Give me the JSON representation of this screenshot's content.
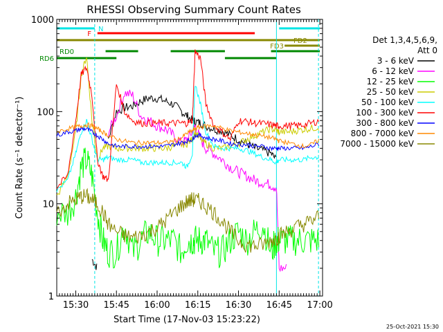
{
  "chart_data": {
    "type": "line",
    "title": "RHESSI Observing Summary Count Rates",
    "xlabel": "Start Time (17-Nov-03 15:23:22)",
    "ylabel": "Count Rate (s⁻¹ detector⁻¹)",
    "yscale": "log",
    "ylim": [
      1,
      1000
    ],
    "xlim": [
      "15:23:22",
      "17:01:00"
    ],
    "xticks": [
      "15:30",
      "15:45",
      "16:00",
      "16:15",
      "16:30",
      "16:45",
      "17:00"
    ],
    "yticks": [
      "1",
      "10",
      "100",
      "1000"
    ],
    "grid": false,
    "legend_position": "right",
    "legend_header": [
      "Det 1,3,4,5,6,9,",
      "Att 0"
    ],
    "footer_date": "25-Oct-2021 15:30",
    "flags": [
      {
        "label": "N",
        "color": "#00e5e5",
        "segments": [
          [
            "15:23",
            "15:37"
          ],
          [
            "16:45",
            "17:00"
          ]
        ]
      },
      {
        "label": "F",
        "color": "#ff0000",
        "segments": [
          [
            "15:38",
            "16:36"
          ]
        ]
      },
      {
        "label": "FD2",
        "color": "#888800",
        "segments": [
          [
            "15:23",
            "17:00"
          ]
        ]
      },
      {
        "label": "FD3",
        "color": "#888800",
        "segments": [
          [
            "16:47",
            "17:00"
          ]
        ]
      },
      {
        "label": "RD0",
        "color": "#008800",
        "segments": [
          [
            "15:41",
            "15:53"
          ],
          [
            "16:05",
            "16:25"
          ],
          [
            "16:42",
            "17:00"
          ]
        ]
      },
      {
        "label": "RD6",
        "color": "#008800",
        "segments": [
          [
            "15:23",
            "15:45"
          ],
          [
            "16:25",
            "16:44"
          ]
        ]
      }
    ],
    "vlines": [
      {
        "time": "15:37",
        "style": "dashed",
        "color": "#00e5e5"
      },
      {
        "time": "16:44",
        "style": "solid",
        "color": "#00e5e5"
      },
      {
        "time": "16:59.5",
        "style": "dashed",
        "color": "#00e5e5"
      }
    ],
    "x_times": [
      "15:23",
      "15:27",
      "15:30",
      "15:32",
      "15:34",
      "15:36",
      "15:38",
      "15:40",
      "15:42",
      "15:45",
      "15:48",
      "15:51",
      "15:54",
      "15:57",
      "16:00",
      "16:03",
      "16:06",
      "16:09",
      "16:11",
      "16:13",
      "16:14",
      "16:16",
      "16:18",
      "16:21",
      "16:24",
      "16:27",
      "16:30",
      "16:33",
      "16:36",
      "16:39",
      "16:42",
      "16:44",
      "16:45",
      "16:48",
      "16:51",
      "16:54",
      "16:57",
      "17:00"
    ],
    "series": [
      {
        "name": "3 - 6 keV",
        "color": "#000000",
        "values": [
          null,
          null,
          null,
          null,
          null,
          2.5,
          2,
          null,
          50,
          100,
          110,
          115,
          130,
          140,
          140,
          130,
          120,
          100,
          90,
          80,
          78,
          75,
          70,
          65,
          62,
          55,
          50,
          45,
          40,
          38,
          35,
          30,
          null,
          null,
          null,
          null,
          null,
          null
        ]
      },
      {
        "name": "6 - 12 keV",
        "color": "#ff00ff",
        "values": [
          null,
          null,
          null,
          null,
          null,
          null,
          null,
          null,
          60,
          90,
          160,
          150,
          90,
          80,
          70,
          65,
          55,
          45,
          50,
          60,
          70,
          50,
          40,
          35,
          30,
          25,
          22,
          20,
          18,
          17,
          16,
          15,
          2,
          2,
          null,
          null,
          null,
          null
        ]
      },
      {
        "name": "12 - 25 keV",
        "color": "#00ff00",
        "values": [
          8,
          8,
          12,
          25,
          30,
          20,
          8,
          4,
          3,
          3,
          6,
          3,
          4,
          5,
          4,
          4,
          4,
          3,
          4,
          4,
          4,
          4,
          4,
          3,
          3,
          4,
          5,
          4,
          5,
          6,
          3,
          4,
          4,
          4,
          4,
          4,
          4,
          4
        ]
      },
      {
        "name": "25 - 50 keV",
        "color": "#cccc00",
        "values": [
          12,
          20,
          60,
          250,
          400,
          80,
          30,
          40,
          42,
          40,
          40,
          40,
          40,
          40,
          40,
          40,
          42,
          44,
          45,
          50,
          60,
          50,
          45,
          40,
          40,
          42,
          45,
          50,
          55,
          60,
          65,
          62,
          60,
          60,
          62,
          64,
          66,
          68
        ]
      },
      {
        "name": "50 - 100 keV",
        "color": "#00ffff",
        "values": [
          14,
          18,
          35,
          60,
          80,
          50,
          30,
          30,
          32,
          30,
          30,
          30,
          28,
          28,
          28,
          28,
          28,
          28,
          25,
          35,
          200,
          120,
          60,
          42,
          40,
          40,
          40,
          38,
          35,
          32,
          30,
          28,
          30,
          30,
          30,
          30,
          32,
          32
        ]
      },
      {
        "name": "100 - 300 keV",
        "color": "#ff0000",
        "values": [
          15,
          20,
          80,
          250,
          300,
          150,
          30,
          20,
          18,
          200,
          100,
          80,
          75,
          75,
          75,
          75,
          75,
          75,
          75,
          80,
          450,
          380,
          120,
          70,
          60,
          50,
          80,
          78,
          75,
          74,
          72,
          70,
          70,
          70,
          70,
          72,
          75,
          80
        ]
      },
      {
        "name": "300 - 800 keV",
        "color": "#0000ff",
        "values": [
          55,
          60,
          62,
          65,
          65,
          60,
          55,
          50,
          45,
          42,
          42,
          42,
          42,
          42,
          42,
          42,
          44,
          46,
          48,
          50,
          55,
          55,
          52,
          50,
          48,
          45,
          44,
          44,
          42,
          42,
          40,
          40,
          40,
          40,
          40,
          40,
          42,
          45
        ]
      },
      {
        "name": "800 - 7000 keV",
        "color": "#ff8800",
        "values": [
          60,
          65,
          68,
          70,
          72,
          70,
          65,
          60,
          55,
          50,
          48,
          46,
          46,
          46,
          46,
          46,
          48,
          52,
          58,
          62,
          66,
          68,
          70,
          70,
          66,
          62,
          60,
          58,
          56,
          54,
          52,
          50,
          48,
          46,
          44,
          42,
          44,
          50
        ]
      },
      {
        "name": "7000 - 15000 keV",
        "color": "#888800",
        "values": [
          8,
          10,
          11,
          12,
          12,
          11,
          10,
          8,
          6,
          5,
          4.5,
          4.3,
          4.5,
          5,
          5.5,
          6.5,
          8,
          9.5,
          10.5,
          11,
          11,
          10.5,
          9.5,
          8,
          6.5,
          5,
          4,
          3.6,
          3.5,
          3.6,
          4,
          4.2,
          4.5,
          5,
          5.5,
          6,
          6.5,
          7.5
        ]
      }
    ]
  }
}
